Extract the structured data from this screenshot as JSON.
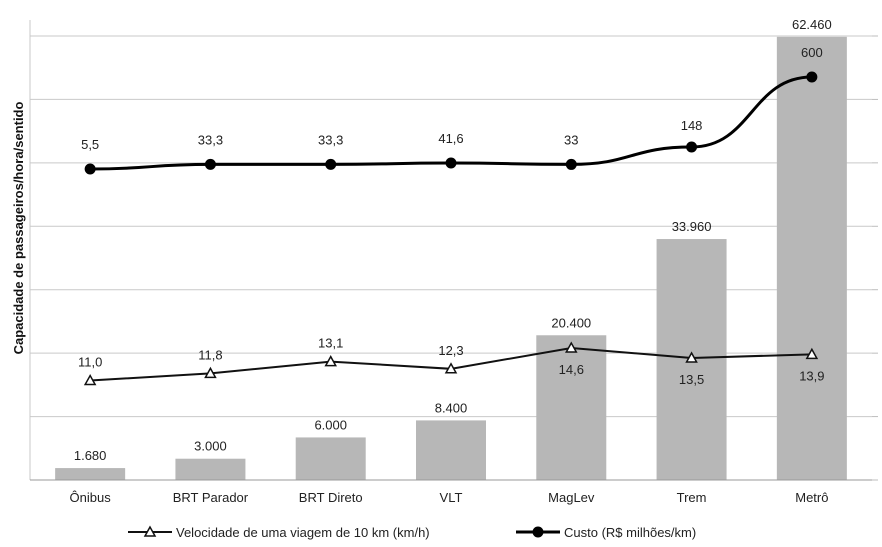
{
  "chart_data": {
    "type": "bar",
    "ylabel": "Capacidade de passageiros/hora/sentido",
    "categories": [
      "Ônibus",
      "BRT Parador",
      "BRT Direto",
      "VLT",
      "MagLev",
      "Trem",
      "Metrô"
    ],
    "bar_series": {
      "values": [
        1680,
        3000,
        6000,
        8400,
        20400,
        33960,
        62460
      ],
      "labels": [
        "1.680",
        "3.000",
        "6.000",
        "8.400",
        "20.400",
        "33.960",
        "62.460"
      ],
      "ylim": [
        0,
        63000
      ],
      "color": "#b7b7b7"
    },
    "line_series": [
      {
        "name": "Velocidade de uma viagem de 10 km (km/h)",
        "marker": "triangle-open",
        "values": [
          11.0,
          11.8,
          13.1,
          12.3,
          14.6,
          13.5,
          13.9
        ],
        "labels": [
          "11,0",
          "11,8",
          "13,1",
          "12,3",
          "14,6",
          "13,5",
          "13,9"
        ],
        "ylim": [
          0,
          50
        ]
      },
      {
        "name": "Custo (R$ milhões/km)",
        "marker": "circle-filled",
        "values": [
          5.5,
          33.3,
          33.3,
          41.6,
          33,
          148,
          600
        ],
        "labels": [
          "5,5",
          "33,3",
          "33,3",
          "41,6",
          "33",
          "148",
          "600"
        ]
      }
    ],
    "grid": true,
    "legend_position": "bottom"
  }
}
